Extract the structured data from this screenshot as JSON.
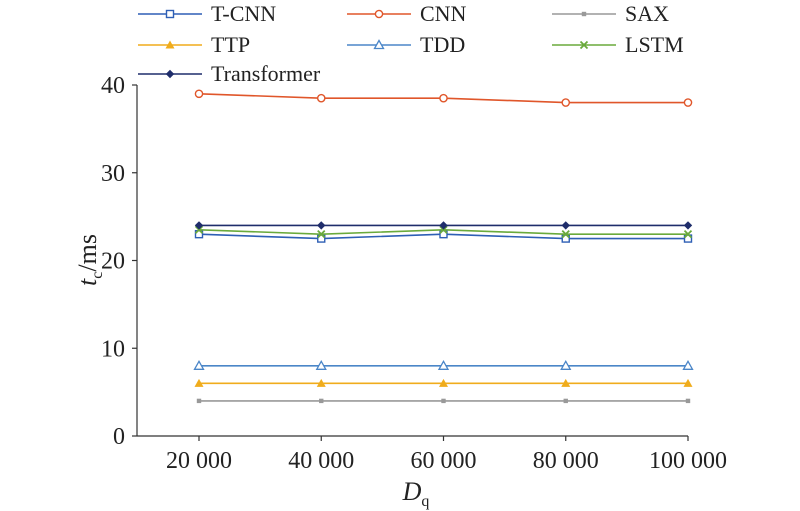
{
  "chart_data": {
    "type": "line",
    "x": [
      20000,
      40000,
      60000,
      80000,
      100000
    ],
    "x_tick_labels": [
      "20 000",
      "40 000",
      "60 000",
      "80 000",
      "100 000"
    ],
    "xlabel": {
      "main": "D",
      "sub": "q"
    },
    "ylabel": {
      "main": "t",
      "sub": "c",
      "unit": "/ms"
    },
    "ylim": [
      0,
      40
    ],
    "y_ticks": [
      0,
      10,
      20,
      30,
      40
    ],
    "y_tick_labels": [
      "0",
      "10",
      "20",
      "30",
      "40"
    ],
    "grid": false,
    "legend_position": "top",
    "series": [
      {
        "name": "T-CNN",
        "color": "#2e5fb5",
        "marker": "square-open",
        "values": [
          23,
          22.5,
          23,
          22.5,
          22.5
        ]
      },
      {
        "name": "CNN",
        "color": "#e0562a",
        "marker": "circle-open",
        "values": [
          39,
          38.5,
          38.5,
          38,
          38
        ]
      },
      {
        "name": "SAX",
        "color": "#999999",
        "marker": "dot",
        "values": [
          4,
          4,
          4,
          4,
          4
        ]
      },
      {
        "name": "TTP",
        "color": "#f0ac1c",
        "marker": "triangle-filled",
        "values": [
          6,
          6,
          6,
          6,
          6
        ]
      },
      {
        "name": "TDD",
        "color": "#4b86c8",
        "marker": "triangle-open",
        "values": [
          8,
          8,
          8,
          8,
          8
        ]
      },
      {
        "name": "LSTM",
        "color": "#6aaa3c",
        "marker": "x",
        "values": [
          23.5,
          23,
          23.5,
          23,
          23
        ]
      },
      {
        "name": "Transformer",
        "color": "#1f2d6b",
        "marker": "diamond-filled",
        "values": [
          24,
          24,
          24,
          24,
          24
        ]
      }
    ]
  }
}
